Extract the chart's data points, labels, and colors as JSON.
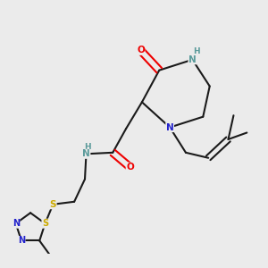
{
  "background_color": "#ebebeb",
  "bond_color": "#1a1a1a",
  "atom_colors": {
    "O": "#ee0000",
    "N": "#2222cc",
    "NH": "#5a9a9a",
    "S": "#ccaa00",
    "C": "#1a1a1a"
  }
}
